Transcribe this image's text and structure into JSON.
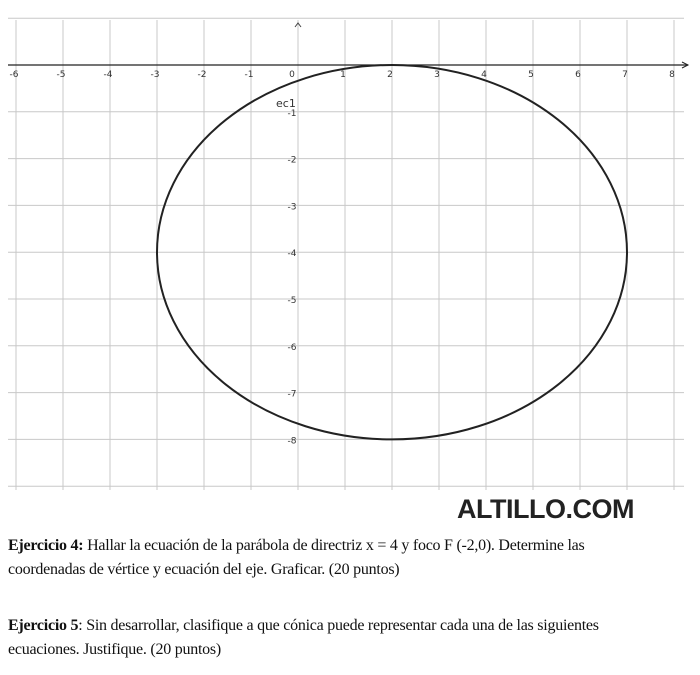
{
  "graph": {
    "x_ticks": [
      "-6",
      "-5",
      "-4",
      "-3",
      "-2",
      "-1",
      "0",
      "1",
      "2",
      "3",
      "4",
      "5",
      "6",
      "7",
      "8"
    ],
    "y_ticks": [
      "-1",
      "-2",
      "-3",
      "-4",
      "-5",
      "-6",
      "-7",
      "-8"
    ],
    "curve_label": "ec1",
    "ellipse": {
      "center": [
        2,
        -4
      ],
      "rx": 5,
      "ry": 4
    },
    "x_range": [
      -6,
      8
    ],
    "y_range": [
      -9,
      1
    ],
    "grid": true,
    "curve_color": "#222222",
    "grid_color": "#c8c8c8"
  },
  "watermark": "ALTILLO.COM",
  "exercise4": {
    "title": "Ejercicio 4:",
    "line1": " Hallar la ecuación de la parábola de directriz x = 4 y foco F (-2,0). Determine las",
    "line2": "coordenadas de vértice y ecuación del eje. Graficar. (20 puntos)"
  },
  "exercise5": {
    "title": "Ejercicio 5",
    "line1": ": Sin desarrollar, clasifique a que cónica puede representar cada una de las siguientes",
    "line2": "ecuaciones. Justifique. (20 puntos)"
  }
}
